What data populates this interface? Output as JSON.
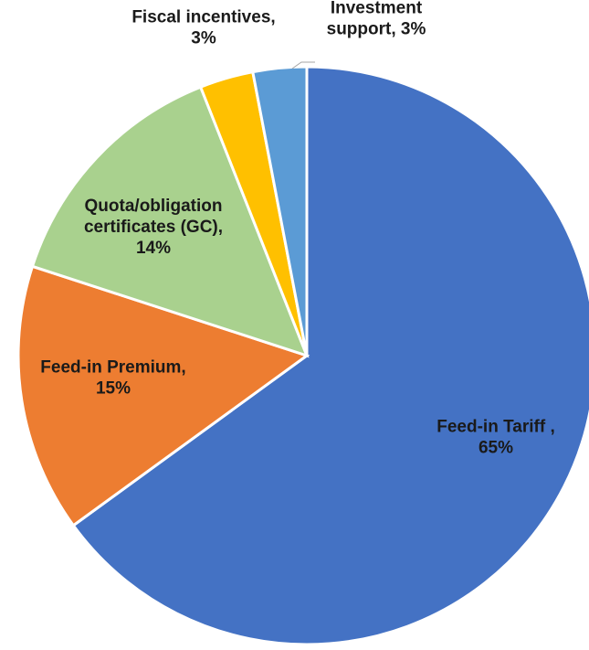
{
  "chart_data": {
    "type": "pie",
    "title": "",
    "slices": [
      {
        "label": "Feed-in Tariff",
        "value": 65,
        "label_lines": [
          "Feed-in Tariff ,",
          "65%"
        ],
        "color": "#4472C4"
      },
      {
        "label": "Feed-in Premium",
        "value": 15,
        "label_lines": [
          "Feed-in Premium,",
          "15%"
        ],
        "color": "#ED7D31"
      },
      {
        "label": "Quota/obligation certificates (GC)",
        "value": 14,
        "label_lines": [
          "Quota/obligation",
          "certificates (GC),",
          "14%"
        ],
        "color": "#A9D18E"
      },
      {
        "label": "Fiscal incentives",
        "value": 3,
        "label_lines": [
          "Fiscal incentives,",
          "3%"
        ],
        "color": "#FFC000"
      },
      {
        "label": "Investment support",
        "value": 3,
        "label_lines": [
          "Investment",
          "support, 3%"
        ],
        "color": "#5B9BD5"
      }
    ]
  }
}
